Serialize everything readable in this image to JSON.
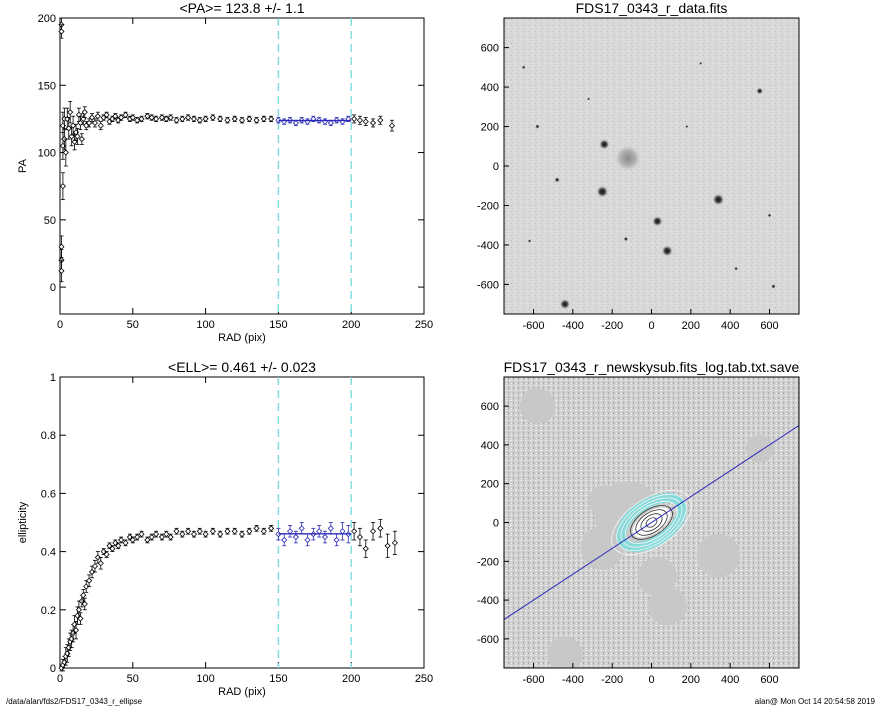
{
  "footer": {
    "left": "/data/alan/fds2/FDS17_0343_r_ellipse",
    "right": "alan@  Mon Oct 14 20:54:58 2019"
  },
  "colors": {
    "fit_band": "#7fdcdc",
    "fit_line": "#2b2bb8",
    "fit_points": "#2b2bb8",
    "points": "#000000"
  },
  "chart_data": [
    {
      "type": "scatter",
      "title": "<PA>= 123.8 +/-   1.1",
      "xlabel": "RAD (pix)",
      "ylabel": "PA",
      "xlim": [
        0,
        250
      ],
      "ylim": [
        -20,
        200
      ],
      "xticks": [
        0,
        50,
        100,
        150,
        200,
        250
      ],
      "yticks": [
        0,
        50,
        100,
        150,
        200
      ],
      "vlines": [
        150,
        200
      ],
      "fit_value": 123.8,
      "fit_range": [
        150,
        200
      ],
      "series": [
        {
          "x": [
            1,
            1,
            1,
            1,
            1,
            2,
            2,
            2,
            3,
            3,
            4,
            5,
            6,
            7,
            8,
            9,
            10,
            11,
            12,
            13,
            14,
            15,
            16,
            17,
            18,
            20,
            22,
            24,
            26,
            28,
            30,
            32,
            34,
            36,
            38,
            40,
            42,
            45,
            48,
            50,
            53,
            56,
            60,
            63,
            66,
            70,
            73,
            76,
            80,
            84,
            88,
            92,
            96,
            100,
            105,
            110,
            115,
            120,
            125,
            130,
            135,
            140,
            145
          ],
          "y": [
            195,
            190,
            20,
            12,
            30,
            105,
            75,
            120,
            110,
            125,
            100,
            125,
            118,
            130,
            112,
            120,
            108,
            115,
            112,
            128,
            122,
            110,
            125,
            130,
            120,
            122,
            126,
            122,
            127,
            120,
            126,
            128,
            123,
            125,
            127,
            124,
            126,
            128,
            125,
            126,
            124,
            125,
            127,
            126,
            125,
            126,
            125,
            126,
            124,
            125,
            126,
            125,
            124,
            125,
            126,
            125,
            124,
            125,
            124,
            125,
            124,
            125,
            125
          ],
          "err": [
            5,
            5,
            8,
            8,
            8,
            10,
            10,
            10,
            8,
            8,
            10,
            8,
            8,
            8,
            7,
            7,
            6,
            6,
            6,
            5,
            5,
            4,
            4,
            4,
            3,
            3,
            3,
            3,
            3,
            3,
            2,
            2,
            2,
            2,
            2,
            2,
            2,
            2,
            2,
            2,
            2,
            2,
            2,
            2,
            2,
            2,
            2,
            2,
            2,
            2,
            2,
            2,
            2,
            2,
            2,
            2,
            2,
            2,
            2,
            2,
            2,
            2,
            2
          ]
        },
        {
          "x": [
            150,
            154,
            158,
            162,
            166,
            170,
            174,
            178,
            182,
            186,
            190,
            194,
            198
          ],
          "y": [
            124,
            123,
            124,
            122,
            124,
            123,
            125,
            124,
            123,
            122,
            124,
            123,
            125
          ],
          "err": [
            2,
            2,
            2,
            2,
            2,
            2,
            2,
            2,
            2,
            2,
            2,
            2,
            2
          ]
        },
        {
          "x": [
            202,
            206,
            210,
            215,
            220,
            228
          ],
          "y": [
            125,
            124,
            123,
            122,
            124,
            120
          ],
          "err": [
            3,
            3,
            3,
            3,
            3,
            4
          ]
        }
      ]
    },
    {
      "type": "heatmap",
      "title": "FDS17_0343_r_data.fits",
      "xlim": [
        -750,
        750
      ],
      "ylim": [
        -750,
        750
      ],
      "xticks": [
        -600,
        -400,
        -200,
        0,
        200,
        400,
        600
      ],
      "yticks": [
        -600,
        -400,
        -200,
        0,
        200,
        400,
        600
      ],
      "sources": [
        {
          "x": -120,
          "y": 40,
          "r": 70
        },
        {
          "x": -240,
          "y": 110,
          "r": 28
        },
        {
          "x": -250,
          "y": -130,
          "r": 32
        },
        {
          "x": 30,
          "y": -280,
          "r": 28
        },
        {
          "x": 80,
          "y": -430,
          "r": 30
        },
        {
          "x": 340,
          "y": -170,
          "r": 32
        },
        {
          "x": -440,
          "y": -700,
          "r": 28
        },
        {
          "x": 550,
          "y": 380,
          "r": 18
        },
        {
          "x": -580,
          "y": 200,
          "r": 12
        },
        {
          "x": -480,
          "y": -70,
          "r": 14
        },
        {
          "x": -130,
          "y": -370,
          "r": 12
        },
        {
          "x": 430,
          "y": -520,
          "r": 10
        },
        {
          "x": 620,
          "y": -610,
          "r": 12
        },
        {
          "x": -650,
          "y": 500,
          "r": 10
        },
        {
          "x": 250,
          "y": 520,
          "r": 8
        },
        {
          "x": 600,
          "y": -250,
          "r": 10
        },
        {
          "x": -320,
          "y": 340,
          "r": 8
        },
        {
          "x": 180,
          "y": 200,
          "r": 8
        },
        {
          "x": -620,
          "y": -380,
          "r": 9
        }
      ]
    },
    {
      "type": "scatter",
      "title": "<ELL>= 0.461 +/-  0.023",
      "xlabel": "RAD (pix)",
      "ylabel": "ellipticity",
      "xlim": [
        0,
        250
      ],
      "ylim": [
        0,
        1
      ],
      "xticks": [
        0,
        50,
        100,
        150,
        200,
        250
      ],
      "yticks": [
        0.0,
        0.2,
        0.4,
        0.6,
        0.8,
        1.0
      ],
      "vlines": [
        150,
        200
      ],
      "fit_value": 0.461,
      "fit_range": [
        150,
        200
      ],
      "series": [
        {
          "x": [
            1,
            2,
            3,
            4,
            5,
            6,
            7,
            8,
            9,
            10,
            11,
            12,
            13,
            14,
            15,
            16,
            17,
            18,
            20,
            22,
            24,
            26,
            28,
            30,
            32,
            34,
            36,
            38,
            40,
            42,
            45,
            48,
            50,
            53,
            56,
            60,
            63,
            66,
            70,
            73,
            76,
            80,
            84,
            88,
            92,
            96,
            100,
            105,
            110,
            115,
            120,
            125,
            130,
            135,
            140,
            145
          ],
          "y": [
            0.0,
            0.01,
            0.02,
            0.04,
            0.05,
            0.07,
            0.09,
            0.1,
            0.12,
            0.15,
            0.13,
            0.18,
            0.2,
            0.17,
            0.23,
            0.25,
            0.22,
            0.28,
            0.3,
            0.33,
            0.35,
            0.38,
            0.36,
            0.4,
            0.39,
            0.42,
            0.41,
            0.43,
            0.42,
            0.44,
            0.43,
            0.45,
            0.44,
            0.45,
            0.46,
            0.44,
            0.45,
            0.46,
            0.45,
            0.46,
            0.45,
            0.47,
            0.46,
            0.47,
            0.46,
            0.47,
            0.46,
            0.47,
            0.46,
            0.47,
            0.47,
            0.46,
            0.47,
            0.48,
            0.47,
            0.48
          ],
          "err": [
            0.01,
            0.02,
            0.02,
            0.03,
            0.03,
            0.03,
            0.03,
            0.03,
            0.03,
            0.03,
            0.03,
            0.03,
            0.03,
            0.02,
            0.02,
            0.02,
            0.02,
            0.02,
            0.02,
            0.02,
            0.02,
            0.02,
            0.02,
            0.01,
            0.01,
            0.01,
            0.01,
            0.01,
            0.01,
            0.01,
            0.01,
            0.01,
            0.01,
            0.01,
            0.01,
            0.01,
            0.01,
            0.01,
            0.01,
            0.01,
            0.01,
            0.01,
            0.01,
            0.01,
            0.01,
            0.01,
            0.01,
            0.01,
            0.01,
            0.01,
            0.01,
            0.01,
            0.01,
            0.01,
            0.01,
            0.01
          ]
        },
        {
          "x": [
            150,
            154,
            158,
            162,
            166,
            170,
            174,
            178,
            182,
            186,
            190,
            194,
            198
          ],
          "y": [
            0.46,
            0.44,
            0.47,
            0.45,
            0.48,
            0.44,
            0.46,
            0.47,
            0.45,
            0.48,
            0.44,
            0.47,
            0.46
          ],
          "err": [
            0.02,
            0.02,
            0.02,
            0.02,
            0.02,
            0.02,
            0.02,
            0.02,
            0.02,
            0.02,
            0.02,
            0.03,
            0.03
          ]
        },
        {
          "x": [
            202,
            206,
            210,
            215,
            220,
            225,
            230
          ],
          "y": [
            0.47,
            0.45,
            0.41,
            0.47,
            0.48,
            0.42,
            0.43
          ],
          "err": [
            0.03,
            0.03,
            0.03,
            0.03,
            0.03,
            0.04,
            0.04
          ]
        }
      ]
    },
    {
      "type": "heatmap",
      "title": "FDS17_0343_r_newskysub.fits_log.tab.txt.save",
      "xlim": [
        -750,
        750
      ],
      "ylim": [
        -750,
        750
      ],
      "xticks": [
        -600,
        -400,
        -200,
        0,
        200,
        400,
        600
      ],
      "yticks": [
        -600,
        -400,
        -200,
        0,
        200,
        400,
        600
      ],
      "pa_line_deg": 33.7,
      "ellipses": [
        {
          "a": 30,
          "ell": 0.3
        },
        {
          "a": 60,
          "ell": 0.4
        },
        {
          "a": 90,
          "ell": 0.44
        },
        {
          "a": 120,
          "ell": 0.45
        },
        {
          "a": 150,
          "ell": 0.46
        },
        {
          "a": 175,
          "ell": 0.46
        },
        {
          "a": 200,
          "ell": 0.46
        },
        {
          "a": 230,
          "ell": 0.47
        }
      ],
      "masks": [
        {
          "x": -120,
          "y": 40,
          "r": 170
        },
        {
          "x": -250,
          "y": -130,
          "r": 110
        },
        {
          "x": 30,
          "y": -280,
          "r": 100
        },
        {
          "x": 80,
          "y": -430,
          "r": 100
        },
        {
          "x": 340,
          "y": -170,
          "r": 110
        },
        {
          "x": -440,
          "y": -680,
          "r": 90
        },
        {
          "x": 550,
          "y": 380,
          "r": 70
        },
        {
          "x": -580,
          "y": 600,
          "r": 90
        },
        {
          "x": -240,
          "y": 110,
          "r": 80
        }
      ]
    }
  ]
}
